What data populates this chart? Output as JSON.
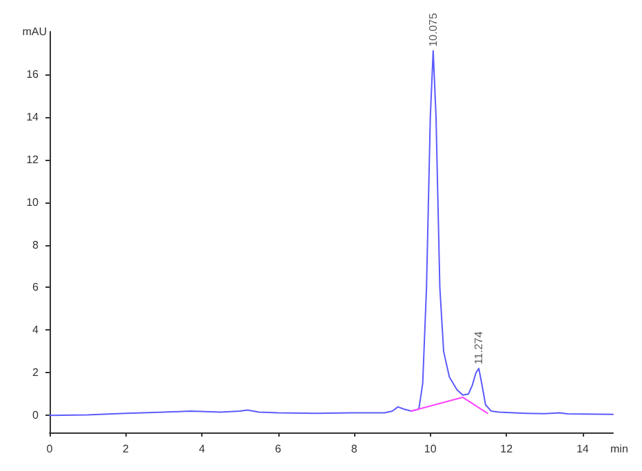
{
  "chart_data": {
    "type": "line",
    "xlabel": "min",
    "ylabel": "mAU",
    "xlim": [
      0,
      14.8
    ],
    "xticks": [
      0,
      2,
      4,
      6,
      8,
      10,
      12,
      14
    ],
    "ylim": [
      -0.8,
      18
    ],
    "yticks": [
      0,
      2,
      4,
      6,
      8,
      10,
      12,
      14,
      16
    ],
    "grid": false,
    "marker": "none",
    "line_style": "solid",
    "series": [
      {
        "color": "#5a5aff",
        "x": [
          0,
          1,
          2,
          3,
          3.7,
          4.5,
          5.0,
          5.2,
          5.5,
          6,
          7,
          8,
          8.8,
          9.0,
          9.15,
          9.3,
          9.5,
          9.7,
          9.8,
          9.9,
          10.0,
          10.075,
          10.15,
          10.25,
          10.35,
          10.5,
          10.7,
          10.85,
          11.0,
          11.1,
          11.2,
          11.274,
          11.35,
          11.45,
          11.6,
          11.8,
          12.5,
          13,
          13.4,
          13.6,
          14.8
        ],
        "values": [
          0.0,
          0.02,
          0.1,
          0.15,
          0.2,
          0.15,
          0.2,
          0.25,
          0.15,
          0.12,
          0.1,
          0.12,
          0.12,
          0.2,
          0.4,
          0.3,
          0.2,
          0.3,
          1.5,
          6,
          14,
          17.1,
          14,
          6,
          3,
          1.8,
          1.2,
          0.95,
          1.0,
          1.4,
          2.0,
          2.2,
          1.5,
          0.5,
          0.2,
          0.15,
          0.1,
          0.08,
          0.12,
          0.07,
          0.05
        ]
      },
      {
        "color": "#ff44ff",
        "x": [
          9.5,
          10.85,
          11.5
        ],
        "values": [
          0.2,
          0.85,
          0.1
        ]
      }
    ],
    "annotations": [
      {
        "text": "10.075",
        "x": 10.075,
        "y": 17.1
      },
      {
        "text": "11.274",
        "x": 11.274,
        "y": 2.2
      }
    ]
  }
}
